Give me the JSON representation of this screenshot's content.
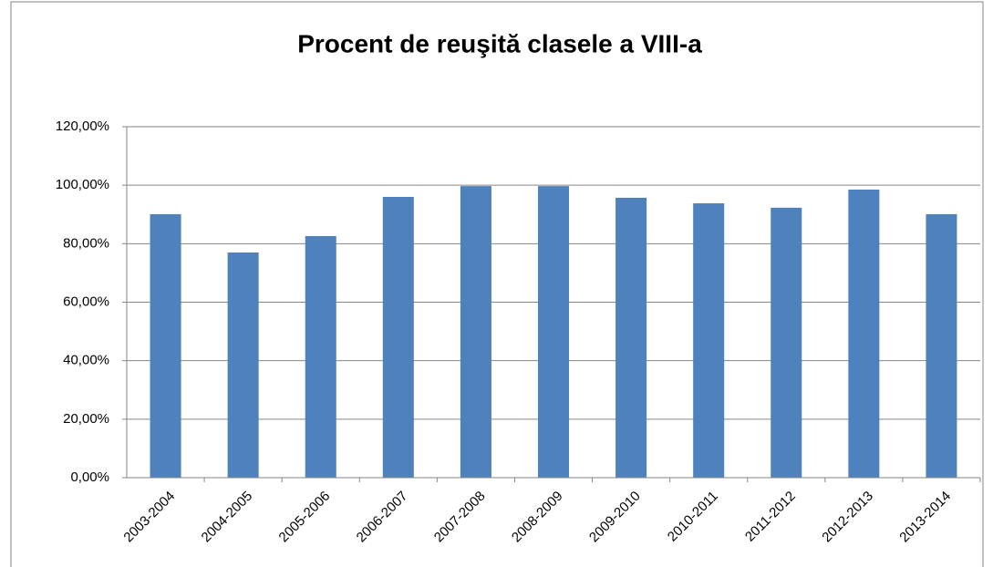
{
  "chart_data": {
    "type": "bar",
    "title": "Procent de reuşită clasele a VIII-a",
    "categories": [
      "2003-2004",
      "2004-2005",
      "2005-2006",
      "2006-2007",
      "2007-2008",
      "2008-2009",
      "2009-2010",
      "2010-2011",
      "2011-2012",
      "2012-2013",
      "2013-2014"
    ],
    "values": [
      90.1,
      77,
      82.6,
      96,
      99.7,
      99.7,
      95.7,
      93.8,
      92.3,
      98.5,
      90.1
    ],
    "color": "#4f81bd",
    "ylim": [
      0,
      120
    ],
    "yticks": [
      {
        "value": 0,
        "label": "0,00%"
      },
      {
        "value": 20,
        "label": "20,00%"
      },
      {
        "value": 40,
        "label": "40,00%"
      },
      {
        "value": 60,
        "label": "60,00%"
      },
      {
        "value": 80,
        "label": "80,00%"
      },
      {
        "value": 100,
        "label": "100,00%"
      },
      {
        "value": 120,
        "label": "120,00%"
      }
    ],
    "grid": true
  }
}
